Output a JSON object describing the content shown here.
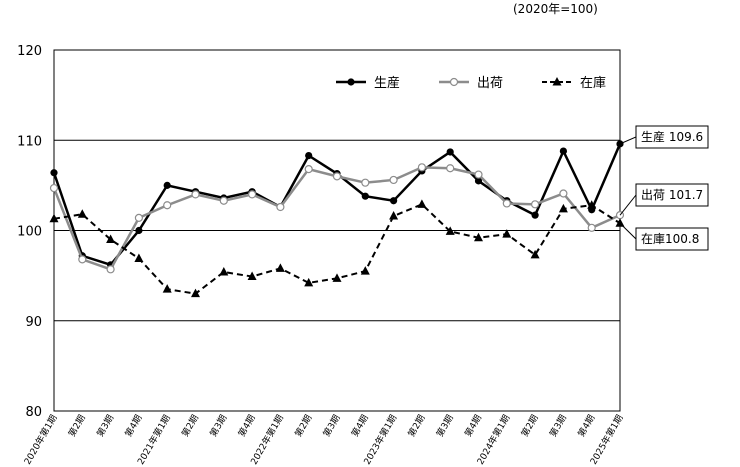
{
  "unit_note": "(2020年=100)",
  "chart_data": {
    "type": "line",
    "title": "",
    "xlabel": "",
    "ylabel": "",
    "ylim": [
      80,
      120
    ],
    "yticks": [
      80,
      90,
      100,
      110,
      120
    ],
    "grid": "horizontal",
    "legend_position": "top-right",
    "categories": [
      "2020年第1期",
      "第2期",
      "第3期",
      "第4期",
      "2021年第1期",
      "第2期",
      "第3期",
      "第4期",
      "2022年第1期",
      "第2期",
      "第3期",
      "第4期",
      "2023年第1期",
      "第2期",
      "第3期",
      "第4期",
      "2024年第1期",
      "第2期",
      "第3期",
      "第4期",
      "2025年第1期"
    ],
    "series": [
      {
        "name": "生産",
        "color": "#000000",
        "style": "solid",
        "marker": "filled-circle",
        "values": [
          106.4,
          97.2,
          96.2,
          100.0,
          105.0,
          104.3,
          103.6,
          104.3,
          102.6,
          108.3,
          106.3,
          103.8,
          103.3,
          106.6,
          108.7,
          105.5,
          103.3,
          101.7,
          108.8,
          102.3,
          109.6
        ]
      },
      {
        "name": "出荷",
        "color": "#8c8c8c",
        "style": "solid",
        "marker": "open-circle",
        "values": [
          104.7,
          96.8,
          95.7,
          101.4,
          102.8,
          104.0,
          103.3,
          104.0,
          102.6,
          106.8,
          106.0,
          105.3,
          105.6,
          107.0,
          106.9,
          106.2,
          103.0,
          102.9,
          104.1,
          100.3,
          101.7
        ]
      },
      {
        "name": "在庫",
        "color": "#000000",
        "style": "dashed",
        "marker": "filled-triangle",
        "values": [
          101.3,
          101.8,
          99.0,
          96.9,
          93.5,
          93.0,
          95.4,
          94.9,
          95.8,
          94.2,
          94.7,
          95.5,
          101.6,
          102.9,
          99.9,
          99.2,
          99.6,
          97.3,
          102.4,
          102.8,
          100.8
        ]
      }
    ],
    "annotations": [
      {
        "series": "生産",
        "text": "生産 109.6"
      },
      {
        "series": "出荷",
        "text": "出荷 101.7"
      },
      {
        "series": "在庫",
        "text": "在庫100.8"
      }
    ]
  }
}
